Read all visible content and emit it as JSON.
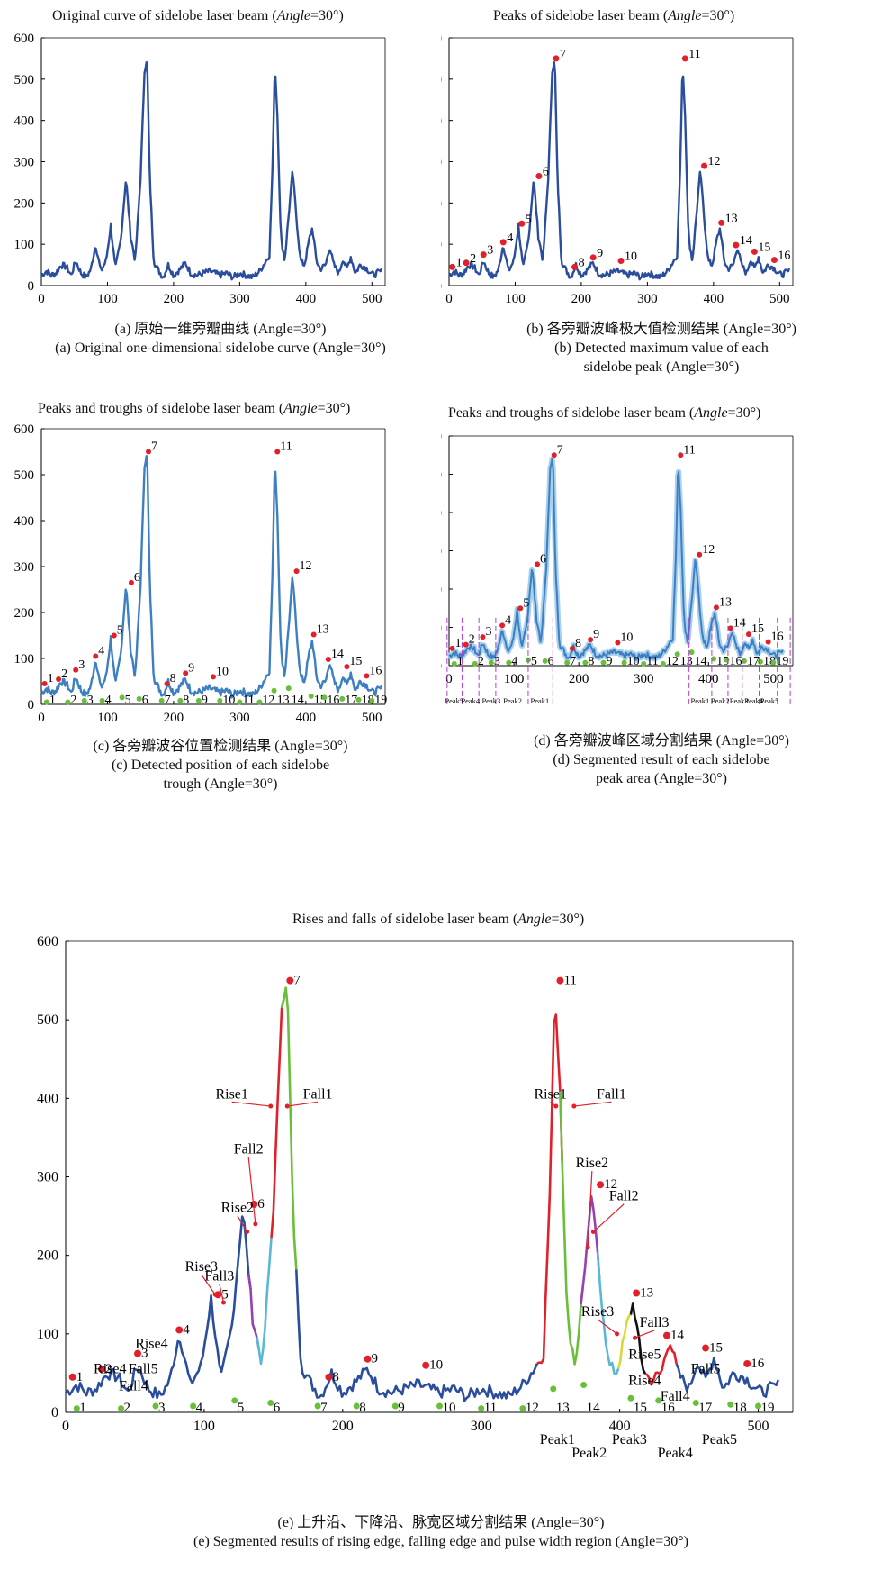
{
  "panels": {
    "a": {
      "title_pre": "Original curve of sidelobe laser beam (",
      "title_it": "Angle",
      "title_post": "=30°)",
      "cap_cn": "(a) 原始一维旁瓣曲线 (Angle=30°)",
      "cap_en": "(a) Original one-dimensional sidelobe curve (Angle=30°)"
    },
    "b": {
      "title_pre": "Peaks of sidelobe laser beam (",
      "title_it": "Angle",
      "title_post": "=30°)",
      "cap_cn": "(b) 各旁瓣波峰极大值检测结果 (Angle=30°)",
      "cap_en1": "(b) Detected maximum value of each",
      "cap_en2": "sidelobe peak (Angle=30°)"
    },
    "c": {
      "title_pre": "Peaks and troughs of sidelobe laser beam (",
      "title_it": "Angle",
      "title_post": "=30°)",
      "cap_cn": "(c) 各旁瓣波谷位置检测结果 (Angle=30°)",
      "cap_en1": "(c) Detected position of each sidelobe",
      "cap_en2": "trough (Angle=30°)"
    },
    "d": {
      "title_pre": "Peaks and troughs of sidelobe laser beam (",
      "title_it": "Angle",
      "title_post": "=30°)",
      "cap_cn": "(d) 各旁瓣波峰区域分割结果 (Angle=30°)",
      "cap_en1": "(d) Segmented result of each sidelobe",
      "cap_en2": "peak area (Angle=30°)"
    },
    "e": {
      "title_pre": "Rises and falls of sidelobe laser beam (",
      "title_it": "Angle",
      "title_post": "=30°)",
      "cap_cn": "(e) 上升沿、下降沿、脉宽区域分割结果 (Angle=30°)",
      "cap_en": "(e) Segmented results of rising edge, falling edge and pulse width region (Angle=30°)"
    }
  },
  "colors": {
    "curve": "#2a4d9c",
    "curve_light": "#3d7fc0",
    "peak_marker": "#e0202a",
    "trough_marker": "#6abf3a",
    "divider": "#b03cc8",
    "rise1": "#e0202a",
    "fall1": "#6abf3a",
    "rise2": "#9a3fb0",
    "fall2": "#5ab8d6",
    "rise3": "#d8d83a",
    "fall3": "#111111",
    "annot_arrow": "#e0202a"
  },
  "chart_data": [
    {
      "type": "line",
      "title": "Original curve of sidelobe laser beam (Angle=30°)",
      "xlim": [
        0,
        520
      ],
      "ylim": [
        0,
        600
      ],
      "xticks": [
        0,
        100,
        200,
        300,
        400,
        500
      ],
      "yticks": [
        0,
        100,
        200,
        300,
        400,
        500,
        600
      ],
      "grid": false,
      "series": [
        {
          "x": [
            0,
            8,
            15,
            22,
            30,
            38,
            45,
            52,
            60,
            68,
            75,
            82,
            90,
            98,
            105,
            112,
            120,
            128,
            135,
            142,
            150,
            156,
            160,
            164,
            170,
            176,
            184,
            192,
            200,
            210,
            218,
            226,
            235,
            245,
            255,
            262,
            270,
            280,
            290,
            300,
            310,
            320,
            330,
            338,
            345,
            350,
            353,
            357,
            362,
            368,
            374,
            380,
            386,
            392,
            398,
            405,
            410,
            416,
            422,
            430,
            436,
            442,
            450,
            456,
            462,
            468,
            475,
            482,
            490,
            496,
            502,
            508,
            515
          ],
          "y": [
            25,
            35,
            25,
            30,
            50,
            45,
            25,
            60,
            30,
            20,
            40,
            100,
            35,
            60,
            145,
            40,
            110,
            260,
            120,
            60,
            260,
            520,
            545,
            260,
            60,
            40,
            20,
            50,
            25,
            40,
            55,
            30,
            25,
            30,
            35,
            30,
            25,
            30,
            20,
            30,
            25,
            20,
            35,
            55,
            75,
            300,
            540,
            410,
            120,
            60,
            170,
            280,
            160,
            60,
            50,
            110,
            140,
            60,
            40,
            50,
            95,
            50,
            30,
            65,
            40,
            70,
            30,
            50,
            45,
            35,
            25,
            30,
            35
          ]
        }
      ]
    },
    {
      "type": "scatter",
      "title": "Peaks of sidelobe laser beam (Angle=30°)",
      "xlim": [
        0,
        520
      ],
      "ylim": [
        0,
        600
      ],
      "peaks": {
        "labels": [
          "1",
          "2",
          "3",
          "4",
          "5",
          "6",
          "7",
          "8",
          "9",
          "10",
          "11",
          "12",
          "13",
          "14",
          "15",
          "16"
        ],
        "x": [
          5,
          26,
          52,
          82,
          110,
          136,
          162,
          190,
          218,
          260,
          357,
          386,
          412,
          434,
          462,
          492
        ],
        "y": [
          45,
          55,
          75,
          105,
          150,
          265,
          550,
          45,
          68,
          60,
          550,
          290,
          152,
          98,
          82,
          62
        ]
      }
    },
    {
      "type": "scatter",
      "title": "Peaks and troughs of sidelobe laser beam (Angle=30°)",
      "xlim": [
        0,
        520
      ],
      "ylim": [
        0,
        600
      ],
      "peaks": {
        "labels": [
          "1",
          "2",
          "3",
          "4",
          "5",
          "6",
          "7",
          "8",
          "9",
          "10",
          "11",
          "12",
          "13",
          "14",
          "15",
          "16"
        ],
        "x": [
          5,
          26,
          52,
          82,
          110,
          136,
          162,
          190,
          218,
          260,
          357,
          386,
          412,
          434,
          462,
          492
        ],
        "y": [
          45,
          55,
          75,
          105,
          150,
          265,
          550,
          45,
          68,
          60,
          550,
          290,
          152,
          98,
          82,
          62
        ]
      },
      "troughs": {
        "labels": [
          "1",
          "2",
          "3",
          "4",
          "5",
          "6",
          "7",
          "8",
          "9",
          "10",
          "11",
          "12",
          "13",
          "14",
          "15",
          "16",
          "17",
          "18",
          "19"
        ],
        "x": [
          8,
          40,
          65,
          92,
          122,
          148,
          182,
          210,
          238,
          270,
          300,
          330,
          352,
          374,
          408,
          428,
          455,
          480,
          500
        ],
        "y": [
          5,
          5,
          8,
          8,
          15,
          12,
          8,
          8,
          8,
          8,
          5,
          5,
          30,
          35,
          18,
          15,
          12,
          10,
          8
        ]
      }
    },
    {
      "type": "scatter",
      "title": "Peaks and troughs of sidelobe laser beam (Angle=30°)",
      "xlim": [
        0,
        530
      ],
      "ylim": [
        0,
        600
      ],
      "region_labels": [
        {
          "label": "Peak5",
          "x": 8
        },
        {
          "label": "Peak4",
          "x": 33
        },
        {
          "label": "Peak3",
          "x": 65
        },
        {
          "label": "Peak2",
          "x": 98
        },
        {
          "label": "Peak1",
          "x": 140
        },
        {
          "label": "Peak1",
          "x": 387
        },
        {
          "label": "Peak2",
          "x": 418
        },
        {
          "label": "Peak3",
          "x": 447
        },
        {
          "label": "Peak4",
          "x": 470
        },
        {
          "label": "Peak5",
          "x": 494
        }
      ]
    },
    {
      "type": "line",
      "title": "Rises and falls of sidelobe laser beam (Angle=30°)",
      "xlim": [
        0,
        525
      ],
      "ylim": [
        0,
        600
      ],
      "annotations": [
        "Rise1",
        "Fall1",
        "Rise2",
        "Fall2",
        "Rise3",
        "Fall3",
        "Rise4",
        "Fall4",
        "Rise5",
        "Fall5"
      ],
      "region_labels": [
        {
          "label": "Peak1",
          "x": 355
        },
        {
          "label": "Peak2",
          "x": 378
        },
        {
          "label": "Peak3",
          "x": 407
        },
        {
          "label": "Peak4",
          "x": 440
        },
        {
          "label": "Peak5",
          "x": 472
        }
      ]
    }
  ]
}
